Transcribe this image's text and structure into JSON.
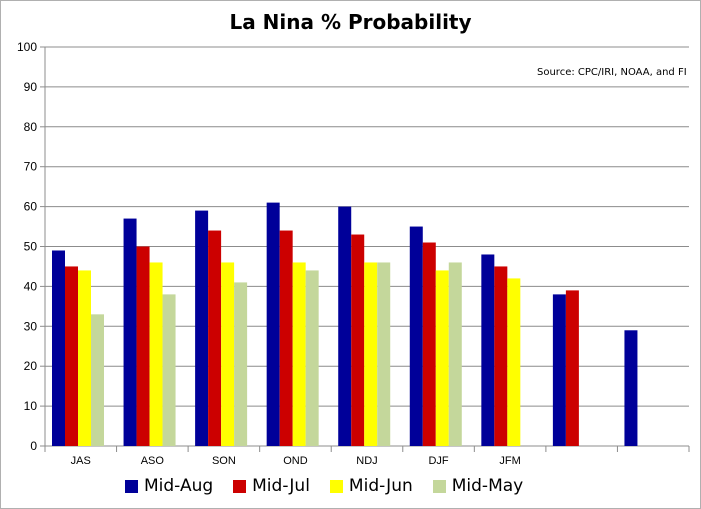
{
  "chart_data": {
    "type": "bar",
    "title": "La Nina % Probability",
    "annotation": "Source: CPC/IRI, NOAA, and FI",
    "xlabel": "",
    "ylabel": "",
    "ylim": [
      0,
      100
    ],
    "yticks": [
      0,
      10,
      20,
      30,
      40,
      50,
      60,
      70,
      80,
      90,
      100
    ],
    "grid": true,
    "legend_position": "bottom",
    "categories": [
      "JAS",
      "ASO",
      "SON",
      "OND",
      "NDJ",
      "DJF",
      "JFM",
      "",
      ""
    ],
    "series": [
      {
        "name": "Mid-Aug",
        "color": "#000099",
        "values": [
          49,
          57,
          59,
          61,
          60,
          55,
          48,
          38,
          29
        ]
      },
      {
        "name": "Mid-Jul",
        "color": "#cc0000",
        "values": [
          45,
          50,
          54,
          54,
          53,
          51,
          45,
          39,
          null
        ]
      },
      {
        "name": "Mid-Jun",
        "color": "#ffff00",
        "values": [
          44,
          46,
          46,
          46,
          46,
          44,
          42,
          null,
          null
        ]
      },
      {
        "name": "Mid-May",
        "color": "#c4d79b",
        "values": [
          33,
          38,
          41,
          44,
          46,
          46,
          null,
          null,
          null
        ]
      }
    ]
  }
}
